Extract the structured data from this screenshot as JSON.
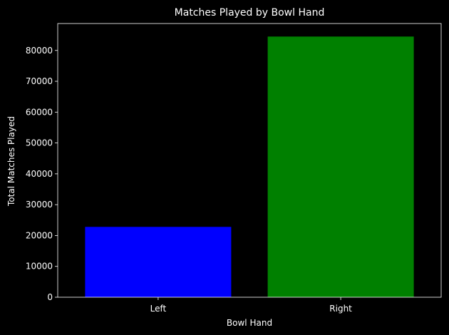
{
  "chart_data": {
    "type": "bar",
    "title": "Matches Played by Bowl Hand",
    "xlabel": "Bowl Hand",
    "ylabel": "Total Matches Played",
    "categories": [
      "Left",
      "Right"
    ],
    "values": [
      22800,
      84500
    ],
    "bar_colors": [
      "#0000ff",
      "#008000"
    ],
    "ylim": [
      0,
      88725
    ],
    "yticks": [
      0,
      10000,
      20000,
      30000,
      40000,
      50000,
      60000,
      70000,
      80000
    ],
    "grid": false,
    "background_color": "#000000",
    "foreground_color": "#ffffff"
  }
}
